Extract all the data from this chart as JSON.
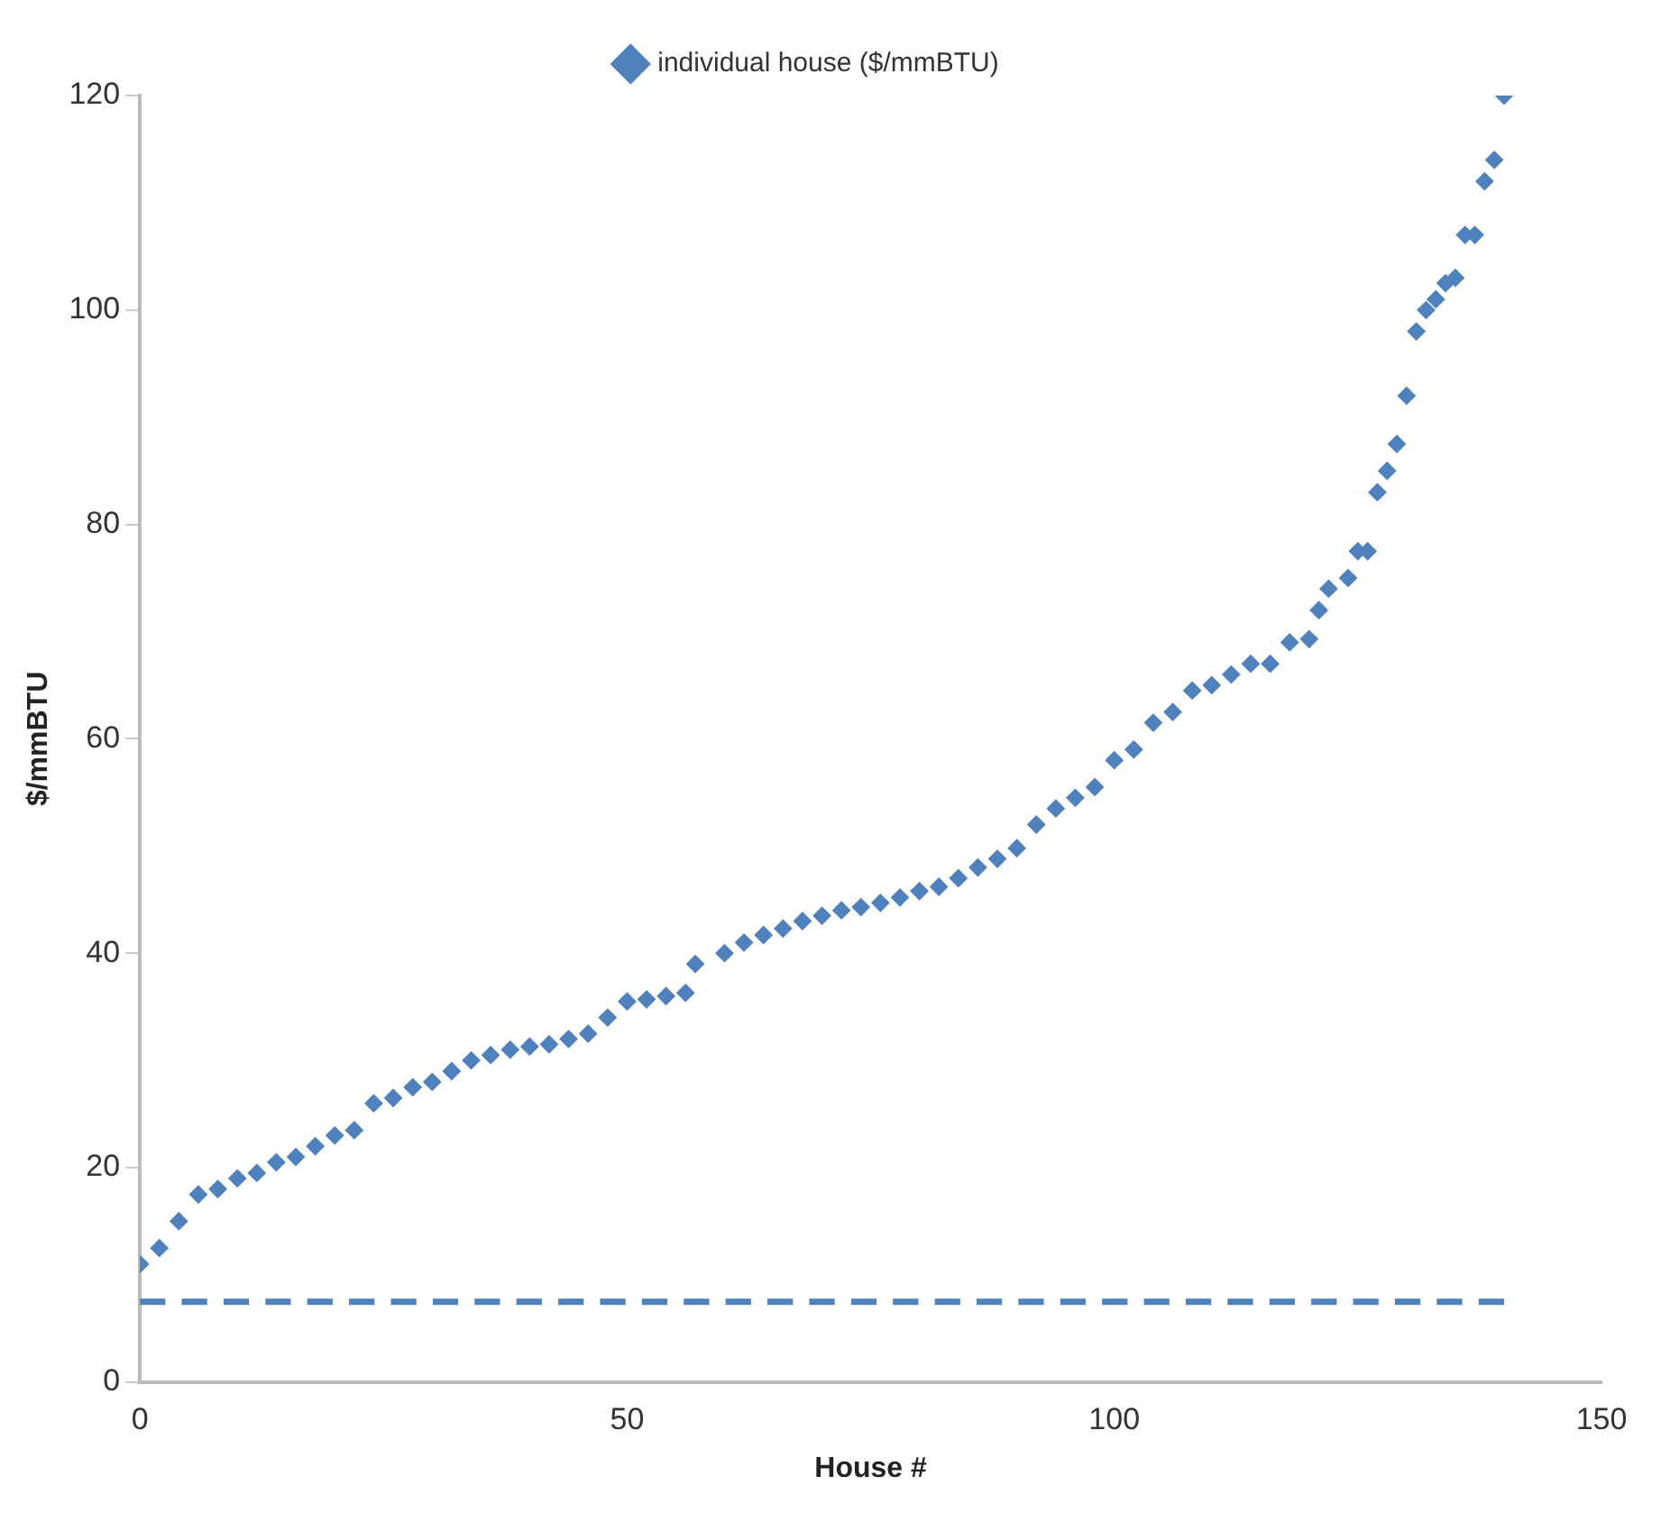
{
  "chart_data": {
    "type": "scatter",
    "xlabel": "House #",
    "ylabel": "$/mmBTU",
    "xlim": [
      0,
      150
    ],
    "xticks": [
      0,
      50,
      100,
      150
    ],
    "ylim": [
      0,
      120
    ],
    "yticks": [
      0,
      20,
      40,
      60,
      80,
      100,
      120
    ],
    "grid": false,
    "legend": "top",
    "marker": "diamond",
    "series": [
      {
        "name": "individual house ($/mmBTU)",
        "color": "#4f81bd",
        "x": [
          0,
          2,
          4,
          6,
          8,
          10,
          12,
          14,
          16,
          18,
          20,
          22,
          24,
          26,
          28,
          30,
          32,
          34,
          36,
          38,
          40,
          42,
          44,
          46,
          48,
          50,
          52,
          54,
          56,
          57,
          60,
          62,
          64,
          66,
          68,
          70,
          72,
          74,
          76,
          78,
          80,
          82,
          84,
          86,
          88,
          90,
          92,
          94,
          96,
          98,
          100,
          102,
          104,
          106,
          108,
          110,
          112,
          114,
          116,
          118,
          120,
          121,
          122,
          124,
          125,
          126,
          127,
          128,
          129,
          130,
          131,
          132,
          133,
          134,
          135,
          136,
          137,
          138,
          139,
          140
        ],
        "values": [
          11,
          12.5,
          15,
          17.5,
          18,
          19,
          19.5,
          20.5,
          21,
          22,
          23,
          23.5,
          26,
          26.5,
          27.5,
          28,
          29,
          30,
          30.5,
          31,
          31.3,
          31.5,
          32,
          32.5,
          34,
          35.5,
          35.7,
          36,
          36.3,
          39,
          40,
          41,
          41.7,
          42.3,
          43,
          43.5,
          44,
          44.3,
          44.7,
          45.2,
          45.8,
          46.2,
          47,
          48,
          48.8,
          49.8,
          52,
          53.5,
          54.5,
          55.5,
          58,
          59,
          61.5,
          62.5,
          64.5,
          65,
          66,
          67,
          67,
          69,
          69.3,
          72,
          74,
          75,
          77.5,
          77.5,
          83,
          85,
          87.5,
          92,
          98,
          100,
          101,
          102.5,
          103,
          107,
          107,
          112,
          114,
          120
        ]
      },
      {
        "type": "line",
        "line_style": "dashed",
        "marker": "none",
        "color": "#4f81bd",
        "x": [
          0,
          140
        ],
        "values": [
          7.5,
          7.5
        ]
      }
    ]
  }
}
